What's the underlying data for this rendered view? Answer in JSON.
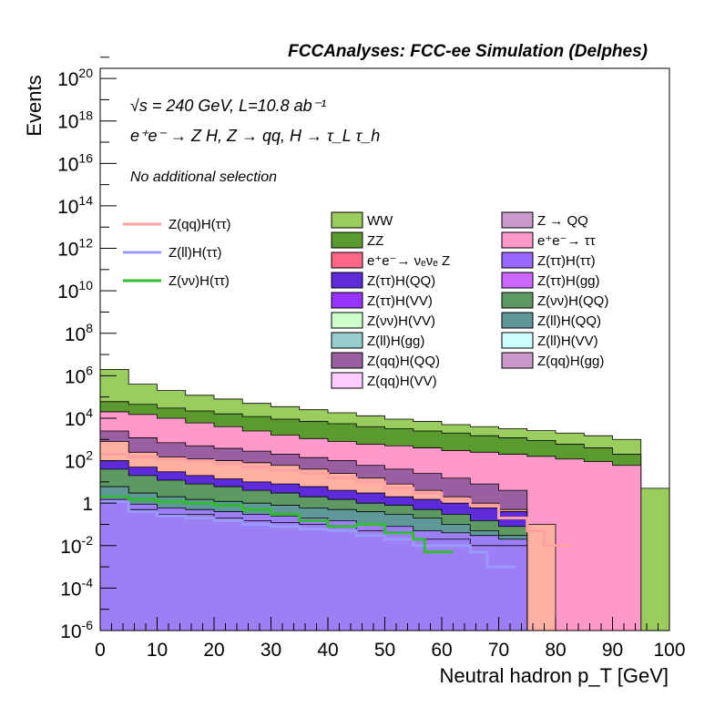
{
  "chart_data": {
    "type": "area",
    "title": "FCCAnalyses: FCC-ee Simulation (Delphes)",
    "xlabel": "Neutral hadron p_T [GeV]",
    "ylabel": "Events",
    "xlim": [
      0,
      100
    ],
    "ylim": [
      1e-06,
      3e+20
    ],
    "y_scale": "log",
    "x_ticks": [
      {
        "v": 0,
        "label": "0"
      },
      {
        "v": 10,
        "label": "10"
      },
      {
        "v": 20,
        "label": "20"
      },
      {
        "v": 30,
        "label": "30"
      },
      {
        "v": 40,
        "label": "40"
      },
      {
        "v": 50,
        "label": "50"
      },
      {
        "v": 60,
        "label": "60"
      },
      {
        "v": 70,
        "label": "70"
      },
      {
        "v": 80,
        "label": "80"
      },
      {
        "v": 90,
        "label": "90"
      },
      {
        "v": 100,
        "label": "100"
      }
    ],
    "y_ticks": [
      {
        "v": 1e-06,
        "base": "10",
        "exp": "-6"
      },
      {
        "v": 0.0001,
        "base": "10",
        "exp": "-4"
      },
      {
        "v": 0.01,
        "base": "10",
        "exp": "-2"
      },
      {
        "v": 1,
        "base": "1",
        "exp": ""
      },
      {
        "v": 100.0,
        "base": "10",
        "exp": "2"
      },
      {
        "v": 10000.0,
        "base": "10",
        "exp": "4"
      },
      {
        "v": 1000000.0,
        "base": "10",
        "exp": "6"
      },
      {
        "v": 100000000.0,
        "base": "10",
        "exp": "8"
      },
      {
        "v": 10000000000.0,
        "base": "10",
        "exp": "10"
      },
      {
        "v": 1000000000000.0,
        "base": "10",
        "exp": "12"
      },
      {
        "v": 100000000000000.0,
        "base": "10",
        "exp": "14"
      },
      {
        "v": 1e+16,
        "base": "10",
        "exp": "16"
      },
      {
        "v": 1e+18,
        "base": "10",
        "exp": "18"
      },
      {
        "v": 1e+20,
        "base": "10",
        "exp": "20"
      }
    ],
    "annotations": [
      "√s = 240 GeV, L=10.8 ab⁻¹",
      "e⁺e⁻ → Z H, Z → qq, H → τ_L τ_h",
      "No additional selection"
    ],
    "stacked_series": [
      {
        "name": "Z(ll)H(ττ)",
        "color": "#9d7ff5",
        "points": [
          [
            0,
            1.5
          ],
          [
            5,
            0.5
          ],
          [
            10,
            0.3
          ],
          [
            15,
            0.3
          ],
          [
            20,
            0.2
          ],
          [
            25,
            0.15
          ],
          [
            30,
            0.12
          ],
          [
            35,
            0.1
          ],
          [
            40,
            0.08
          ],
          [
            45,
            0.05
          ],
          [
            50,
            0.04
          ],
          [
            55,
            0.02
          ],
          [
            60,
            0.02
          ],
          [
            65,
            0.01
          ],
          [
            70,
            0.01
          ]
        ]
      },
      {
        "name": "Z(ττ)H(ττ)",
        "color": "#9d7ff5",
        "points": [
          [
            0,
            2
          ],
          [
            5,
            0.9
          ],
          [
            10,
            0.6
          ],
          [
            15,
            0.5
          ],
          [
            20,
            0.4
          ],
          [
            25,
            0.3
          ],
          [
            30,
            0.25
          ],
          [
            35,
            0.2
          ],
          [
            40,
            0.15
          ],
          [
            45,
            0.1
          ],
          [
            50,
            0.08
          ],
          [
            55,
            0.05
          ],
          [
            60,
            0.04
          ],
          [
            65,
            0.03
          ],
          [
            70,
            0.02
          ]
        ]
      },
      {
        "name": "Z(ll)H(QQ)",
        "color": "#5f9898",
        "points": [
          [
            0,
            6
          ],
          [
            5,
            3
          ],
          [
            10,
            2
          ],
          [
            15,
            1.5
          ],
          [
            20,
            1.2
          ],
          [
            25,
            1
          ],
          [
            30,
            0.8
          ],
          [
            35,
            0.6
          ],
          [
            40,
            0.5
          ],
          [
            45,
            0.4
          ],
          [
            50,
            0.3
          ],
          [
            55,
            0.2
          ],
          [
            60,
            0.1
          ],
          [
            65,
            0.05
          ],
          [
            70,
            0.03
          ]
        ]
      },
      {
        "name": "Z(νν)H(QQ)",
        "color": "#5e9862",
        "points": [
          [
            0,
            40
          ],
          [
            5,
            20
          ],
          [
            10,
            12
          ],
          [
            15,
            8
          ],
          [
            20,
            6
          ],
          [
            25,
            4
          ],
          [
            30,
            3
          ],
          [
            35,
            2
          ],
          [
            40,
            1.5
          ],
          [
            45,
            1
          ],
          [
            50,
            0.8
          ],
          [
            55,
            0.5
          ],
          [
            60,
            0.3
          ],
          [
            65,
            0.15
          ],
          [
            70,
            0.08
          ]
        ]
      },
      {
        "name": "Z(ττ)H(QQ)",
        "color": "#5e2bdb",
        "points": [
          [
            0,
            100
          ],
          [
            5,
            50
          ],
          [
            10,
            30
          ],
          [
            15,
            20
          ],
          [
            20,
            14
          ],
          [
            25,
            10
          ],
          [
            30,
            8
          ],
          [
            35,
            6
          ],
          [
            40,
            4
          ],
          [
            45,
            3
          ],
          [
            50,
            2
          ],
          [
            55,
            1.5
          ],
          [
            60,
            1
          ],
          [
            65,
            0.6
          ],
          [
            70,
            0.4
          ]
        ]
      },
      {
        "name": "Z(qq)H(ττ)",
        "color": "#ffb0a0",
        "points": [
          [
            0,
            800
          ],
          [
            5,
            250
          ],
          [
            10,
            150
          ],
          [
            15,
            120
          ],
          [
            20,
            100
          ],
          [
            25,
            80
          ],
          [
            30,
            60
          ],
          [
            35,
            40
          ],
          [
            40,
            25
          ],
          [
            45,
            15
          ],
          [
            50,
            8
          ],
          [
            55,
            4
          ],
          [
            60,
            2
          ],
          [
            65,
            1
          ],
          [
            70,
            0.5
          ],
          [
            75,
            0.1
          ]
        ]
      },
      {
        "name": "Z(qq)H(QQ)",
        "color": "#9a5fa0",
        "points": [
          [
            0,
            2500
          ],
          [
            5,
            1200
          ],
          [
            10,
            700
          ],
          [
            15,
            500
          ],
          [
            20,
            380
          ],
          [
            25,
            280
          ],
          [
            30,
            200
          ],
          [
            35,
            140
          ],
          [
            40,
            100
          ],
          [
            45,
            60
          ],
          [
            50,
            40
          ],
          [
            55,
            25
          ],
          [
            60,
            15
          ],
          [
            65,
            8
          ],
          [
            70,
            4
          ]
        ]
      },
      {
        "name": "e⁺e⁻ → ττ",
        "color": "#ff99cc",
        "points": [
          [
            0,
            20000
          ],
          [
            5,
            15000
          ],
          [
            10,
            10000
          ],
          [
            15,
            6000
          ],
          [
            20,
            4000
          ],
          [
            25,
            2500
          ],
          [
            30,
            1600
          ],
          [
            35,
            1100
          ],
          [
            40,
            800
          ],
          [
            45,
            600
          ],
          [
            50,
            500
          ],
          [
            55,
            400
          ],
          [
            60,
            300
          ],
          [
            65,
            250
          ],
          [
            70,
            200
          ],
          [
            75,
            160
          ],
          [
            80,
            120
          ],
          [
            85,
            90
          ],
          [
            90,
            60
          ],
          [
            95,
            5e-07
          ]
        ]
      },
      {
        "name": "ZZ",
        "color": "#5a9a2e",
        "points": [
          [
            0,
            60000
          ],
          [
            5,
            45000
          ],
          [
            10,
            30000
          ],
          [
            15,
            22000
          ],
          [
            20,
            16000
          ],
          [
            25,
            12000
          ],
          [
            30,
            9000
          ],
          [
            35,
            7000
          ],
          [
            40,
            5500
          ],
          [
            45,
            4000
          ],
          [
            50,
            3200
          ],
          [
            55,
            2500
          ],
          [
            60,
            2000
          ],
          [
            65,
            1500
          ],
          [
            70,
            1200
          ],
          [
            75,
            900
          ],
          [
            80,
            600
          ],
          [
            85,
            400
          ],
          [
            90,
            200
          ],
          [
            95,
            5e-07
          ]
        ]
      },
      {
        "name": "WW",
        "color": "#9acd5e",
        "points": [
          [
            0,
            2000000
          ],
          [
            5,
            400000
          ],
          [
            10,
            200000
          ],
          [
            15,
            120000
          ],
          [
            20,
            80000
          ],
          [
            25,
            50000
          ],
          [
            30,
            35000
          ],
          [
            35,
            25000
          ],
          [
            40,
            18000
          ],
          [
            45,
            13000
          ],
          [
            50,
            9000
          ],
          [
            55,
            7000
          ],
          [
            60,
            5000
          ],
          [
            65,
            4000
          ],
          [
            70,
            3200
          ],
          [
            75,
            2600
          ],
          [
            80,
            2000
          ],
          [
            85,
            1500
          ],
          [
            90,
            1000
          ],
          [
            95,
            5
          ],
          [
            100,
            5
          ]
        ]
      }
    ],
    "line_series": [
      {
        "name": "Z(qq)H(ττ)",
        "color": "#ffa0a0",
        "points": [
          [
            0,
            200
          ],
          [
            5,
            150
          ],
          [
            10,
            120
          ],
          [
            15,
            100
          ],
          [
            20,
            70
          ],
          [
            25,
            50
          ],
          [
            30,
            35
          ],
          [
            35,
            25
          ],
          [
            40,
            15
          ],
          [
            45,
            10
          ],
          [
            50,
            5
          ],
          [
            55,
            3
          ],
          [
            60,
            1.5
          ],
          [
            65,
            0.8
          ],
          [
            70,
            0.2
          ],
          [
            75,
            0.05
          ],
          [
            78,
            0.01
          ]
        ]
      },
      {
        "name": "Z(ll)H(ττ)",
        "color": "#9999ff",
        "points": [
          [
            0,
            1.2
          ],
          [
            5,
            0.4
          ],
          [
            10,
            0.25
          ],
          [
            15,
            0.2
          ],
          [
            20,
            0.15
          ],
          [
            25,
            0.1
          ],
          [
            30,
            0.08
          ],
          [
            35,
            0.06
          ],
          [
            40,
            0.05
          ],
          [
            45,
            0.03
          ],
          [
            50,
            0.02
          ],
          [
            55,
            0.01
          ],
          [
            60,
            0.01
          ],
          [
            65,
            0.005
          ],
          [
            68,
            0.001
          ]
        ]
      },
      {
        "name": "Z(νν)H(ττ)",
        "color": "#33bb33",
        "points": [
          [
            0,
            2
          ],
          [
            5,
            1.5
          ],
          [
            10,
            1.2
          ],
          [
            15,
            1
          ],
          [
            20,
            0.8
          ],
          [
            25,
            0.5
          ],
          [
            30,
            0.3
          ],
          [
            35,
            0.15
          ],
          [
            40,
            0.08
          ],
          [
            45,
            0.1
          ],
          [
            50,
            0.04
          ],
          [
            55,
            0.02
          ],
          [
            57,
            0.005
          ]
        ]
      }
    ],
    "legend_lines": [
      {
        "label": "Z(qq)H(ττ)",
        "color": "#ffa0a0"
      },
      {
        "label": "Z(ll)H(ττ)",
        "color": "#9999ff"
      },
      {
        "label": "Z(νν)H(ττ)",
        "color": "#33bb33"
      }
    ],
    "legend_boxes": [
      {
        "label": "WW",
        "color": "#9acd5e"
      },
      {
        "label": "Z → QQ",
        "color": "#cc99cc"
      },
      {
        "label": "ZZ",
        "color": "#5a9a2e"
      },
      {
        "label": "e⁺e⁻→ ττ",
        "color": "#ff99cc"
      },
      {
        "label": "e⁺e⁻→ νₑνₑ Z",
        "color": "#ff6688"
      },
      {
        "label": "Z(ττ)H(ττ)",
        "color": "#9966ff"
      },
      {
        "label": "Z(ττ)H(QQ)",
        "color": "#5e2bdb"
      },
      {
        "label": "Z(ττ)H(gg)",
        "color": "#cc66ff"
      },
      {
        "label": "Z(ττ)H(VV)",
        "color": "#9933ff"
      },
      {
        "label": "Z(νν)H(QQ)",
        "color": "#5e9862"
      },
      {
        "label": "Z(νν)H(VV)",
        "color": "#ccffcc"
      },
      {
        "label": "Z(ll)H(QQ)",
        "color": "#5f9898"
      },
      {
        "label": "Z(ll)H(gg)",
        "color": "#99cccc"
      },
      {
        "label": "Z(ll)H(VV)",
        "color": "#ccffff"
      },
      {
        "label": "Z(qq)H(QQ)",
        "color": "#9a5fa0"
      },
      {
        "label": "Z(qq)H(gg)",
        "color": "#cc99cc"
      },
      {
        "label": "Z(qq)H(VV)",
        "color": "#ffccff"
      }
    ]
  }
}
